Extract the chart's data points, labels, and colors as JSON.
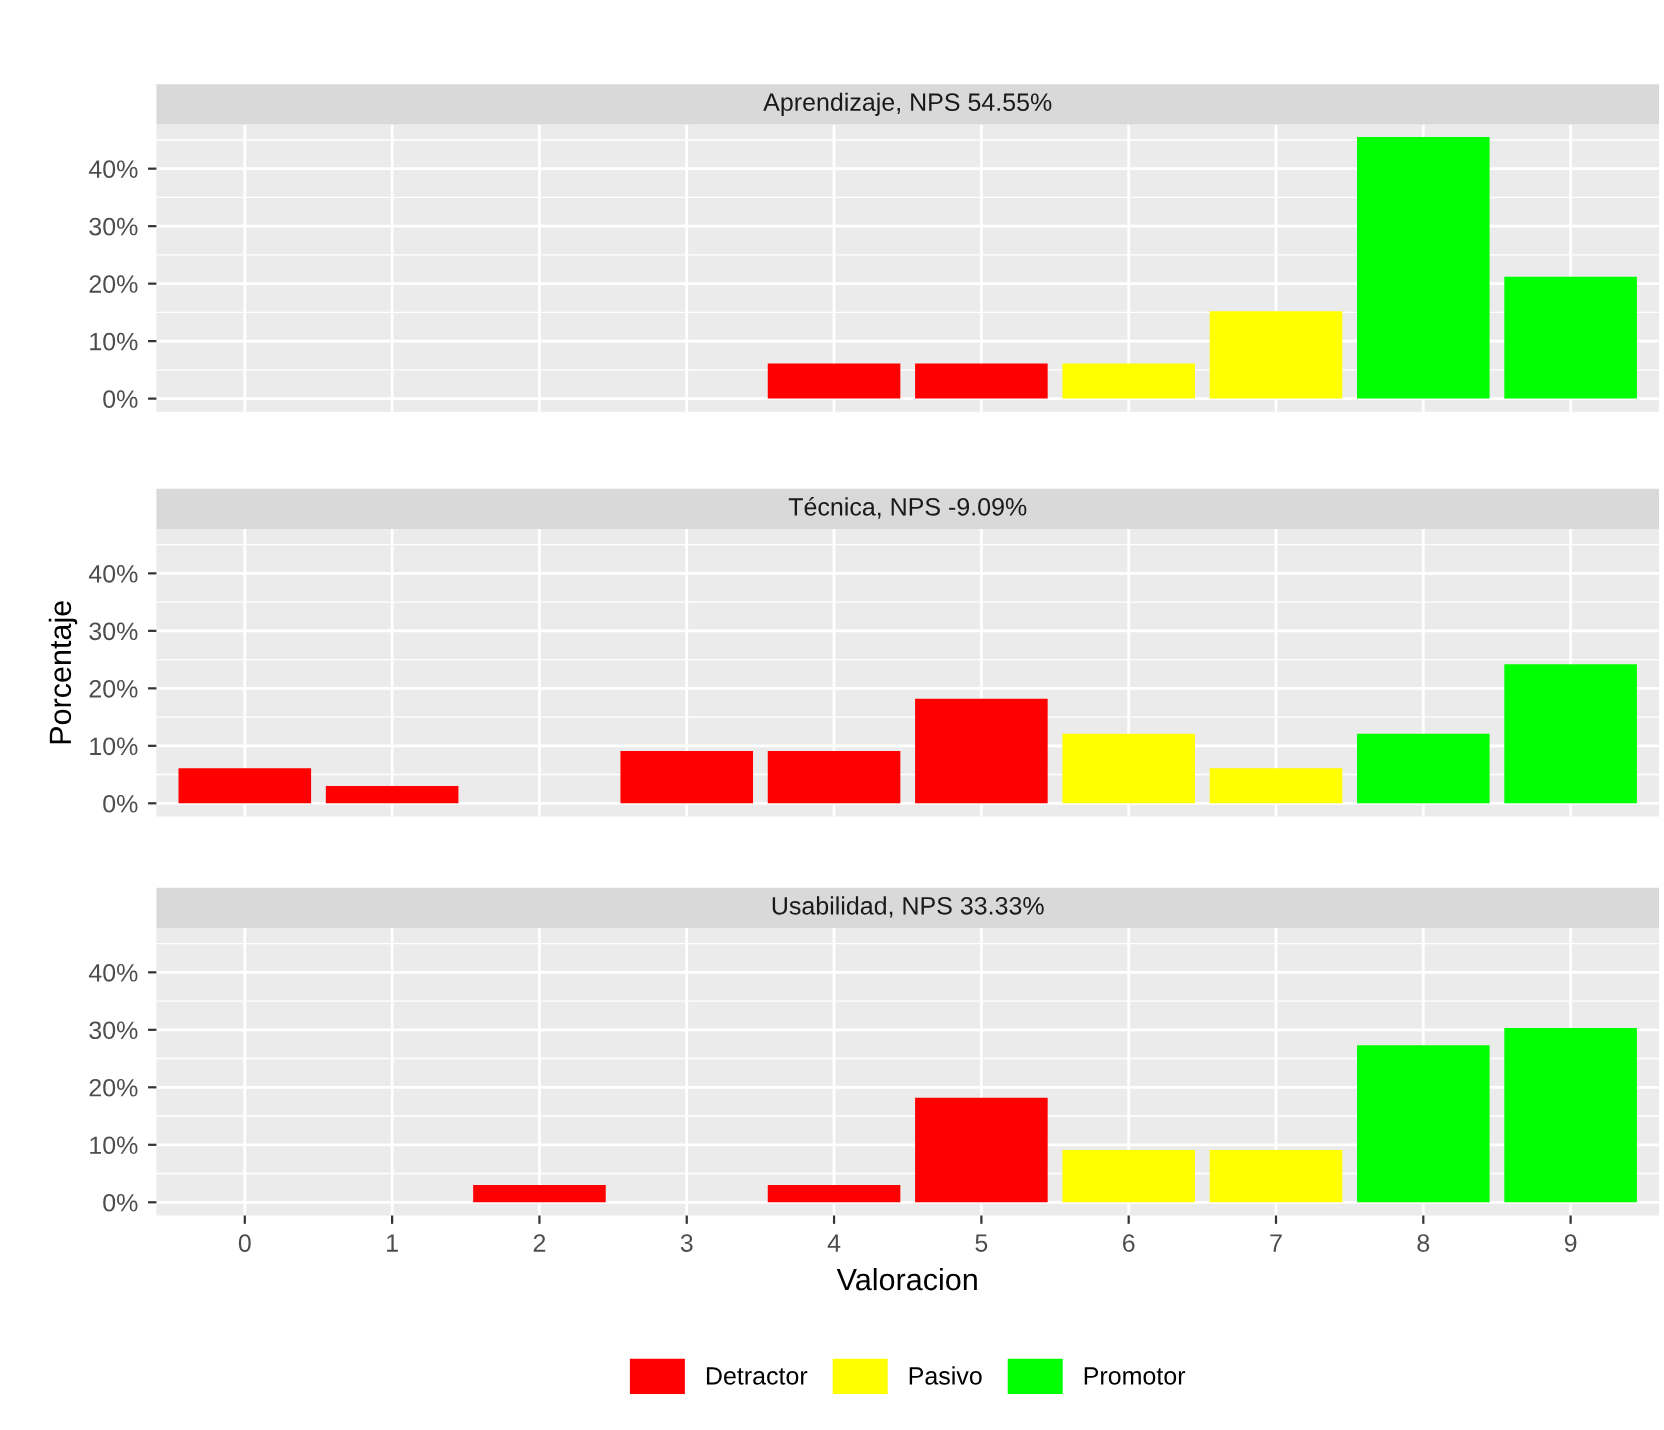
{
  "chart_data": [
    {
      "type": "bar",
      "title": "Aprendizaje, NPS 54.55%",
      "categories": [
        "0",
        "1",
        "2",
        "3",
        "4",
        "5",
        "6",
        "7",
        "8",
        "9"
      ],
      "series": [
        {
          "color": "#ff0000",
          "values": [
            null,
            null,
            null,
            null,
            6.1,
            6.1,
            null,
            null,
            null,
            null
          ]
        },
        {
          "color": "#ffff00",
          "values": [
            null,
            null,
            null,
            null,
            null,
            null,
            6.1,
            15.2,
            null,
            null
          ]
        },
        {
          "color": "#00ff00",
          "values": [
            null,
            null,
            null,
            null,
            null,
            null,
            null,
            null,
            45.5,
            21.2
          ]
        }
      ],
      "ylim": [
        -2.3,
        47.7
      ],
      "yticks": [
        {
          "value": 0,
          "label": "0%"
        },
        {
          "value": 10,
          "label": "10%"
        },
        {
          "value": 20,
          "label": "20%"
        },
        {
          "value": 30,
          "label": "30%"
        },
        {
          "value": 40,
          "label": "40%"
        }
      ],
      "grid": true,
      "tick_labels": "y"
    },
    {
      "type": "bar",
      "title": "Técnica, NPS -9.09%",
      "ylabel": "Porcentaje",
      "categories": [
        "0",
        "1",
        "2",
        "3",
        "4",
        "5",
        "6",
        "7",
        "8",
        "9"
      ],
      "series": [
        {
          "color": "#ff0000",
          "values": [
            6.1,
            3.0,
            null,
            9.1,
            9.1,
            18.2,
            null,
            null,
            null,
            null
          ]
        },
        {
          "color": "#ffff00",
          "values": [
            null,
            null,
            null,
            null,
            null,
            null,
            12.1,
            6.1,
            null,
            null
          ]
        },
        {
          "color": "#00ff00",
          "values": [
            null,
            null,
            null,
            null,
            null,
            null,
            null,
            null,
            12.1,
            24.2
          ]
        }
      ],
      "ylim": [
        -2.3,
        47.7
      ],
      "yticks": [
        {
          "value": 0,
          "label": "0%"
        },
        {
          "value": 10,
          "label": "10%"
        },
        {
          "value": 20,
          "label": "20%"
        },
        {
          "value": 30,
          "label": "30%"
        },
        {
          "value": 40,
          "label": "40%"
        }
      ],
      "grid": true,
      "tick_labels": "y"
    },
    {
      "type": "bar",
      "title": "Usabilidad, NPS 33.33%",
      "xlabel": "Valoracion",
      "categories": [
        "0",
        "1",
        "2",
        "3",
        "4",
        "5",
        "6",
        "7",
        "8",
        "9"
      ],
      "series": [
        {
          "name": "Detractor",
          "color": "#ff0000",
          "values": [
            null,
            null,
            3.0,
            null,
            3.0,
            18.2,
            null,
            null,
            null,
            null
          ]
        },
        {
          "name": "Pasivo",
          "color": "#ffff00",
          "values": [
            null,
            null,
            null,
            null,
            null,
            null,
            9.1,
            9.1,
            null,
            null
          ]
        },
        {
          "name": "Promotor",
          "color": "#00ff00",
          "values": [
            null,
            null,
            null,
            null,
            null,
            null,
            null,
            null,
            27.3,
            30.3
          ]
        }
      ],
      "ylim": [
        -2.3,
        47.7
      ],
      "yticks": [
        {
          "value": 0,
          "label": "0%"
        },
        {
          "value": 10,
          "label": "10%"
        },
        {
          "value": 20,
          "label": "20%"
        },
        {
          "value": 30,
          "label": "30%"
        },
        {
          "value": 40,
          "label": "40%"
        }
      ],
      "grid": true,
      "legend": "bottom"
    }
  ]
}
